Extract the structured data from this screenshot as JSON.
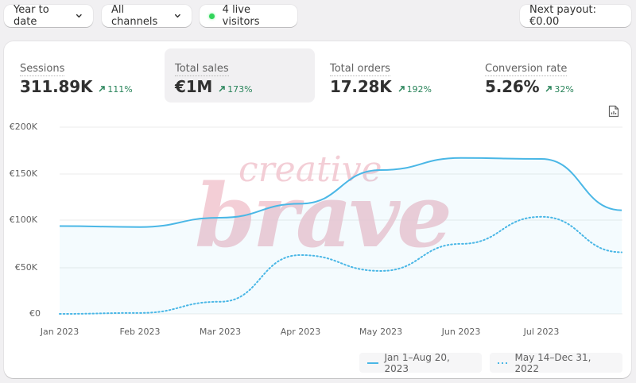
{
  "toolbar": {
    "date_range": "Year to date",
    "channels": "All channels",
    "live_visitors": "4 live visitors",
    "payout": "Next payout: €0.00"
  },
  "metrics": [
    {
      "label": "Sessions",
      "value": "311.89K",
      "delta": "111%",
      "active": false
    },
    {
      "label": "Total sales",
      "value": "€1M",
      "delta": "173%",
      "active": true
    },
    {
      "label": "Total orders",
      "value": "17.28K",
      "delta": "192%",
      "active": false
    },
    {
      "label": "Conversion rate",
      "value": "5.26%",
      "delta": "32%",
      "active": false
    }
  ],
  "colors": {
    "series_primary": "#4ab7e6",
    "series_comparison": "#4ab7e6",
    "delta_positive": "#29845a",
    "live_dot": "#31d45a",
    "watermark": "#f2c6cf"
  },
  "watermark": {
    "top": "creative",
    "bottom": "brave"
  },
  "legend": {
    "current": "Jan 1–Aug 20, 2023",
    "comparison": "May 14–Dec 31, 2022"
  },
  "chart_data": {
    "type": "line",
    "title": "Total sales",
    "xlabel": "",
    "ylabel": "",
    "ylim": [
      0,
      200000
    ],
    "y_ticks": [
      "€0",
      "€50K",
      "€100K",
      "€150K",
      "€200K"
    ],
    "x_ticks": [
      "Jan 2023",
      "Feb 2023",
      "Mar 2023",
      "Apr 2023",
      "May 2023",
      "Jun 2023",
      "Jul 2023"
    ],
    "grid": true,
    "legend_position": "bottom-right",
    "x": [
      "Jan",
      "Feb",
      "Mar",
      "Apr",
      "May",
      "Jun",
      "Jul",
      "Aug"
    ],
    "series": [
      {
        "name": "Jan 1–Aug 20, 2023",
        "style": "solid",
        "values": [
          94000,
          93000,
          103000,
          118000,
          154000,
          167000,
          166000,
          111000
        ]
      },
      {
        "name": "May 14–Dec 31, 2022",
        "style": "dotted",
        "values": [
          0,
          1000,
          13000,
          63000,
          46000,
          75000,
          104000,
          66000
        ]
      }
    ]
  }
}
